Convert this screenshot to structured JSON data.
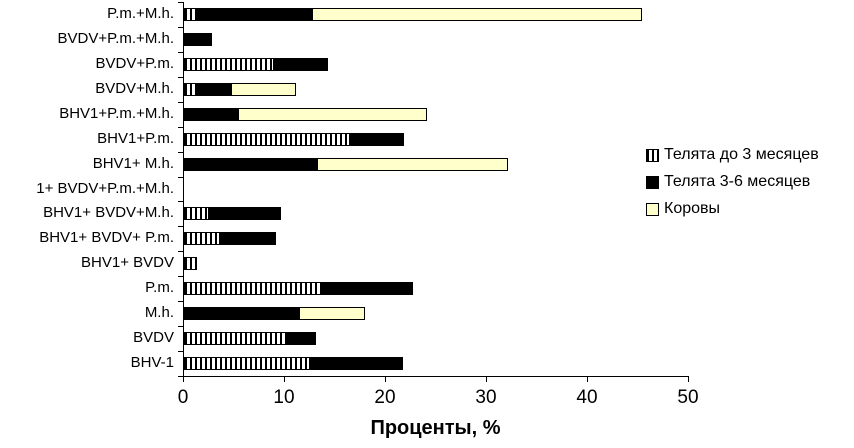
{
  "chart_data": {
    "type": "bar",
    "orientation": "horizontal",
    "stacked": true,
    "title": "",
    "xlabel": "Проценты, %",
    "ylabel": "",
    "xlim": [
      0,
      50
    ],
    "x_ticks": [
      0,
      10,
      20,
      30,
      40,
      50
    ],
    "grid": false,
    "legend_position": "right",
    "categories": [
      "P.m.+M.h.",
      "BVDV+P.m.+M.h.",
      "BVDV+P.m.",
      "BVDV+M.h.",
      "BHV1+P.m.+M.h.",
      "BHV1+P.m.",
      "BHV1+ M.h.",
      "1+ BVDV+P.m.+M.h.",
      "BHV1+ BVDV+M.h.",
      "BHV1+ BVDV+ P.m.",
      "BHV1+ BVDV",
      "P.m.",
      "M.h.",
      "BVDV",
      "BHV-1"
    ],
    "series": [
      {
        "name": "Телята до 3 месяцев",
        "style": "striped",
        "fill": "black-vertical-stripes-on-white",
        "values": [
          1.3,
          0,
          8.9,
          1.3,
          0,
          16.4,
          0,
          0,
          2.5,
          3.6,
          1.3,
          13.6,
          0,
          10.2,
          12.5
        ]
      },
      {
        "name": "Телята 3-6 месяцев",
        "style": "black",
        "color": "#000000",
        "values": [
          11.5,
          2.8,
          5.4,
          3.5,
          5.4,
          5.4,
          13.3,
          0,
          7.1,
          5.5,
          0,
          9.1,
          11.5,
          2.9,
          9.2
        ]
      },
      {
        "name": "Коровы",
        "style": "cream",
        "color": "#FFFFCC",
        "values": [
          32.5,
          0,
          0,
          6.3,
          18.7,
          0,
          18.8,
          0,
          0,
          0,
          0,
          0,
          6.4,
          0,
          0
        ]
      }
    ]
  },
  "colors": {
    "background": "#FFFFFF",
    "axis": "#000000",
    "bar_border": "#000000",
    "series_black": "#000000",
    "series_cream": "#FFFFCC",
    "text": "#000000"
  }
}
